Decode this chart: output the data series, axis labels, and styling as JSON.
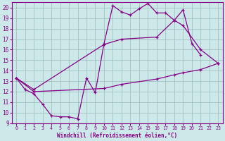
{
  "xlabel": "Windchill (Refroidissement éolien,°C)",
  "xlim": [
    -0.5,
    23.5
  ],
  "ylim": [
    9,
    20.5
  ],
  "xticks": [
    0,
    1,
    2,
    3,
    4,
    5,
    6,
    7,
    8,
    9,
    10,
    11,
    12,
    13,
    14,
    15,
    16,
    17,
    18,
    19,
    20,
    21,
    22,
    23
  ],
  "yticks": [
    9,
    10,
    11,
    12,
    13,
    14,
    15,
    16,
    17,
    18,
    19,
    20
  ],
  "bg_color": "#cce8e8",
  "line_color": "#880088",
  "grid_color": "#99bbbb",
  "line1": [
    [
      0,
      13.3
    ],
    [
      1,
      12.2
    ],
    [
      2,
      11.8
    ],
    [
      3,
      10.8
    ],
    [
      4,
      9.7
    ],
    [
      5,
      9.6
    ],
    [
      6,
      9.6
    ],
    [
      7,
      9.4
    ],
    [
      8,
      13.3
    ],
    [
      9,
      11.9
    ],
    [
      10,
      16.6
    ],
    [
      11,
      20.2
    ],
    [
      12,
      19.6
    ],
    [
      13,
      19.3
    ],
    [
      14,
      19.9
    ],
    [
      15,
      20.4
    ],
    [
      16,
      19.5
    ],
    [
      17,
      19.5
    ],
    [
      18,
      18.8
    ],
    [
      19,
      19.8
    ],
    [
      20,
      16.6
    ],
    [
      21,
      15.5
    ]
  ],
  "line2": [
    [
      0,
      13.3
    ],
    [
      2,
      12.2
    ],
    [
      10,
      16.5
    ],
    [
      12,
      17.0
    ],
    [
      16,
      17.2
    ],
    [
      18,
      18.8
    ],
    [
      19,
      18.3
    ],
    [
      21,
      16.0
    ],
    [
      23,
      14.7
    ]
  ],
  "line3": [
    [
      0,
      13.3
    ],
    [
      2,
      12.0
    ],
    [
      10,
      12.3
    ],
    [
      12,
      12.7
    ],
    [
      16,
      13.2
    ],
    [
      18,
      13.6
    ],
    [
      19,
      13.8
    ],
    [
      21,
      14.1
    ],
    [
      23,
      14.7
    ]
  ]
}
